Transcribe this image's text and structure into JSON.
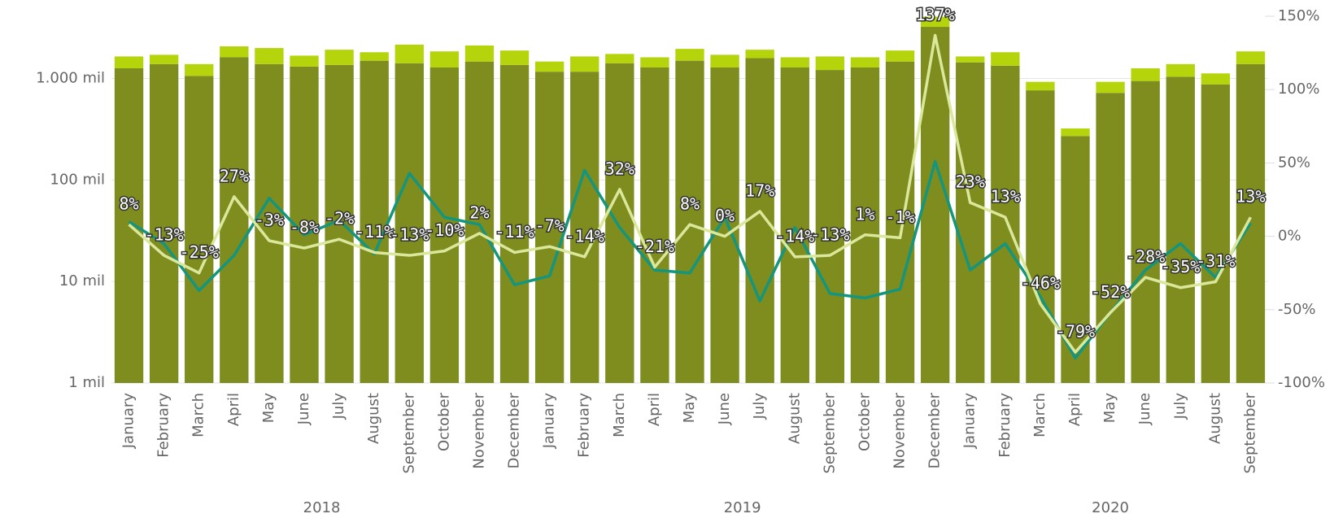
{
  "chart_data": {
    "type": "bar-line",
    "categories": [
      "January",
      "February",
      "March",
      "April",
      "May",
      "June",
      "July",
      "August",
      "September",
      "October",
      "November",
      "December",
      "January",
      "February",
      "March",
      "April",
      "May",
      "June",
      "July",
      "August",
      "September",
      "October",
      "November",
      "December",
      "January",
      "February",
      "March",
      "April",
      "May",
      "June",
      "July",
      "August",
      "September"
    ],
    "years": [
      "2018",
      "2019",
      "2020"
    ],
    "log_scale": true,
    "grid": true,
    "ylim": [
      1,
      4100
    ],
    "yticks": [
      {
        "value": 1,
        "label": "1 mil"
      },
      {
        "value": 10,
        "label": "10 mil"
      },
      {
        "value": 100,
        "label": "100 mil"
      },
      {
        "value": 1000,
        "label": "1.000 mil"
      }
    ],
    "y2lim": [
      -100,
      150
    ],
    "y2ticks": [
      {
        "value": -100,
        "label": "-100%"
      },
      {
        "value": -50,
        "label": "-50%"
      },
      {
        "value": 0,
        "label": "0%"
      },
      {
        "value": 50,
        "label": "50%"
      },
      {
        "value": 100,
        "label": "100%"
      },
      {
        "value": 150,
        "label": "150%"
      }
    ],
    "series": [
      {
        "kind": "bar",
        "color": "#7f8c1e",
        "values": [
          1259,
          1386,
          1059,
          1616,
          1386,
          1309,
          1359,
          1496,
          1413,
          1283,
          1468,
          1359,
          1166,
          1166,
          1413,
          1283,
          1496,
          1283,
          1585,
          1283,
          1212,
          1283,
          1468,
          3224,
          1440,
          1334,
          764,
          271,
          721,
          944,
          1040,
          875,
          1386
        ]
      },
      {
        "kind": "bar",
        "color": "#b5d40c",
        "values": [
          389,
          325,
          327,
          457,
          609,
          370,
          561,
          317,
          741,
          565,
          645,
          525,
          302,
          482,
          331,
          333,
          461,
          428,
          335,
          333,
          436,
          333,
          416,
          831,
          208,
          479,
          162,
          51,
          205,
          315,
          346,
          247,
          462
        ]
      },
      {
        "kind": "line",
        "axis": "y2",
        "color": "#14957e",
        "values": [
          10,
          -5,
          -37,
          -13,
          26,
          1,
          11,
          -12,
          43,
          13,
          8,
          -33,
          -27,
          45,
          6,
          -23,
          -25,
          13,
          -44,
          6,
          -39,
          -42,
          -36,
          51,
          -23,
          -5,
          -41,
          -83,
          -52,
          -23,
          -5,
          -28,
          9
        ]
      },
      {
        "kind": "line",
        "axis": "y2",
        "color": "#dbe89c",
        "values": [
          8,
          -13,
          -25,
          27,
          -3,
          -8,
          -2,
          -11,
          -13,
          -10,
          2,
          -11,
          -7,
          -14,
          32,
          -21,
          8,
          0,
          17,
          -14,
          -13,
          1,
          -1,
          137,
          23,
          13,
          -46,
          -79,
          -52,
          -28,
          -35,
          -31,
          13
        ],
        "value_labels": [
          "8%",
          "-13%",
          "-25%",
          "27%",
          "-3%",
          "-8%",
          "-2%",
          "-11%",
          "-13%",
          "-10%",
          "2%",
          "-11%",
          "-7%",
          "-14%",
          "32%",
          "-21%",
          "8%",
          "0%",
          "17%",
          "-14%",
          "-13%",
          "1%",
          "-1%",
          "137%",
          "23%",
          "13%",
          "-46%",
          "-79%",
          "-52%",
          "-28%",
          "-35%",
          "-31%",
          "13%"
        ]
      }
    ]
  }
}
